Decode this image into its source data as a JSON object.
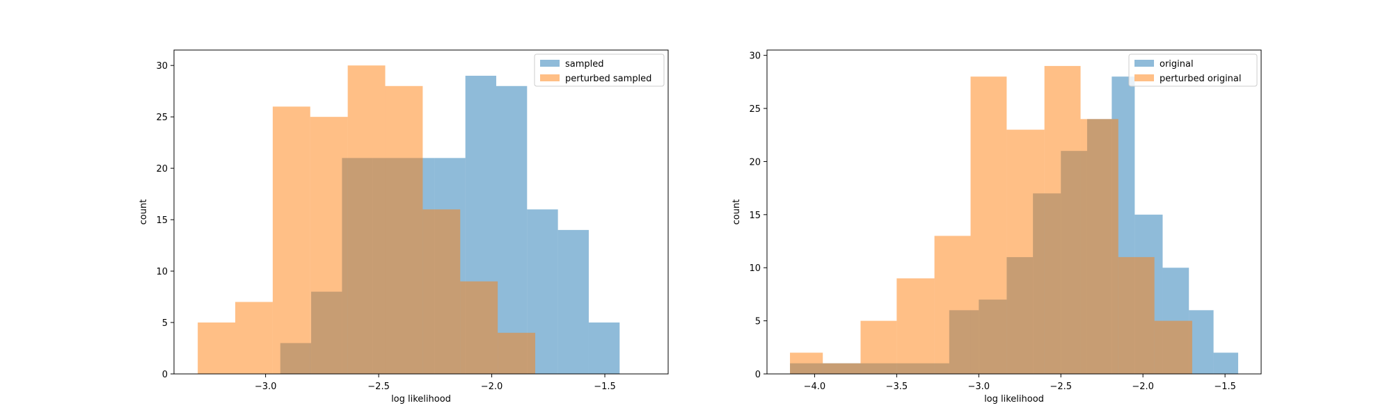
{
  "chart_data": [
    {
      "type": "histogram",
      "xlabel": "log likelihood",
      "ylabel": "count",
      "xlim": [
        -3.405,
        -1.22
      ],
      "ylim": [
        0,
        31.5
      ],
      "xticks": [
        -3.0,
        -2.5,
        -2.0,
        -1.5
      ],
      "xtick_labels": [
        "−3.0",
        "−2.5",
        "−2.0",
        "−1.5"
      ],
      "yticks": [
        0,
        5,
        10,
        15,
        20,
        25,
        30
      ],
      "ytick_labels": [
        "0",
        "5",
        "10",
        "15",
        "20",
        "25",
        "30"
      ],
      "legend_position": "top-right",
      "series": [
        {
          "name": "sampled",
          "color": "#1f77b4",
          "alpha": 0.5,
          "edges": [
            -2.935,
            -2.7986,
            -2.6622,
            -2.5258,
            -2.3894,
            -2.253,
            -2.1166,
            -1.9802,
            -1.8438,
            -1.7074,
            -1.571,
            -1.4346,
            -1.2982
          ],
          "counts": [
            3,
            8,
            21,
            21,
            21,
            21,
            29,
            28,
            16,
            14,
            5,
            0
          ]
        },
        {
          "name": "perturbed sampled",
          "color": "#ff7f0e",
          "alpha": 0.5,
          "edges": [
            -3.3,
            -3.1342,
            -2.9684,
            -2.8026,
            -2.6368,
            -2.471,
            -2.3052,
            -2.1394,
            -1.9736,
            -1.8078,
            -1.642,
            -1.4762,
            -1.3104
          ],
          "counts": [
            5,
            7,
            26,
            25,
            30,
            28,
            16,
            9,
            4,
            0,
            0,
            0
          ]
        }
      ]
    },
    {
      "type": "histogram",
      "xlabel": "log likelihood",
      "ylabel": "count",
      "xlim": [
        -4.29,
        -1.28
      ],
      "ylim": [
        0,
        30.5
      ],
      "xticks": [
        -4.0,
        -3.5,
        -3.0,
        -2.5,
        -2.0,
        -1.5
      ],
      "xtick_labels": [
        "−4.0",
        "−3.5",
        "−3.0",
        "−2.5",
        "−2.0",
        "−1.5"
      ],
      "yticks": [
        0,
        5,
        10,
        15,
        20,
        25,
        30
      ],
      "ytick_labels": [
        "0",
        "5",
        "10",
        "15",
        "20",
        "25",
        "30"
      ],
      "legend_position": "top-right",
      "series": [
        {
          "name": "original",
          "color": "#1f77b4",
          "alpha": 0.5,
          "edges": [
            -4.15,
            -3.5,
            -3.18,
            -3.0,
            -2.83,
            -2.67,
            -2.5,
            -2.34,
            -2.19,
            -2.05,
            -1.88,
            -1.72,
            -1.57,
            -1.42
          ],
          "counts": [
            1,
            1,
            6,
            7,
            11,
            17,
            21,
            24,
            28,
            15,
            10,
            6,
            2
          ]
        },
        {
          "name": "perturbed original",
          "color": "#ff7f0e",
          "alpha": 0.5,
          "edges": [
            -4.15,
            -3.95,
            -3.72,
            -3.5,
            -3.27,
            -3.05,
            -2.83,
            -2.6,
            -2.38,
            -2.15,
            -1.93,
            -1.7
          ],
          "counts": [
            2,
            1,
            5,
            9,
            13,
            28,
            23,
            29,
            24,
            11,
            5
          ]
        }
      ]
    }
  ]
}
